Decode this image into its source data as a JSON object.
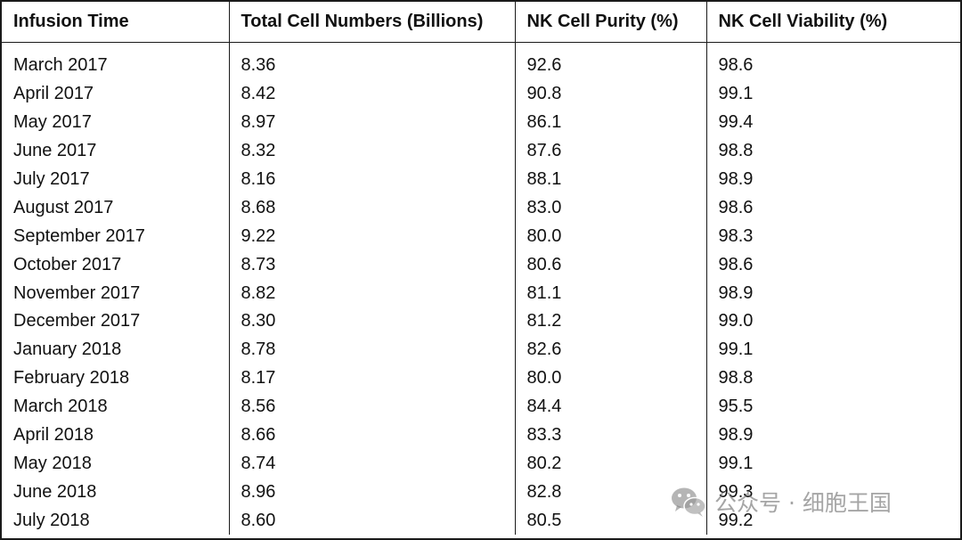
{
  "chart_data": {
    "type": "table",
    "columns": [
      "Infusion Time",
      "Total Cell Numbers (Billions)",
      "NK Cell Purity (%)",
      "NK Cell Viability (%)"
    ],
    "rows": [
      [
        "March 2017",
        "8.36",
        "92.6",
        "98.6"
      ],
      [
        "April 2017",
        "8.42",
        "90.8",
        "99.1"
      ],
      [
        "May 2017",
        "8.97",
        "86.1",
        "99.4"
      ],
      [
        "June 2017",
        "8.32",
        "87.6",
        "98.8"
      ],
      [
        "July 2017",
        "8.16",
        "88.1",
        "98.9"
      ],
      [
        "August 2017",
        "8.68",
        "83.0",
        "98.6"
      ],
      [
        "September 2017",
        "9.22",
        "80.0",
        "98.3"
      ],
      [
        "October 2017",
        "8.73",
        "80.6",
        "98.6"
      ],
      [
        "November 2017",
        "8.82",
        "81.1",
        "98.9"
      ],
      [
        "December 2017",
        "8.30",
        "81.2",
        "99.0"
      ],
      [
        "January 2018",
        "8.78",
        "82.6",
        "99.1"
      ],
      [
        "February 2018",
        "8.17",
        "80.0",
        "98.8"
      ],
      [
        "March 2018",
        "8.56",
        "84.4",
        "95.5"
      ],
      [
        "April 2018",
        "8.66",
        "83.3",
        "98.9"
      ],
      [
        "May 2018",
        "8.74",
        "80.2",
        "99.1"
      ],
      [
        "June 2018",
        "8.96",
        "82.8",
        "99.3"
      ],
      [
        "July 2018",
        "8.60",
        "80.5",
        "99.2"
      ]
    ]
  },
  "watermark": {
    "icon": "wechat-logo-icon",
    "text": "公众号 · 细胞王国"
  }
}
